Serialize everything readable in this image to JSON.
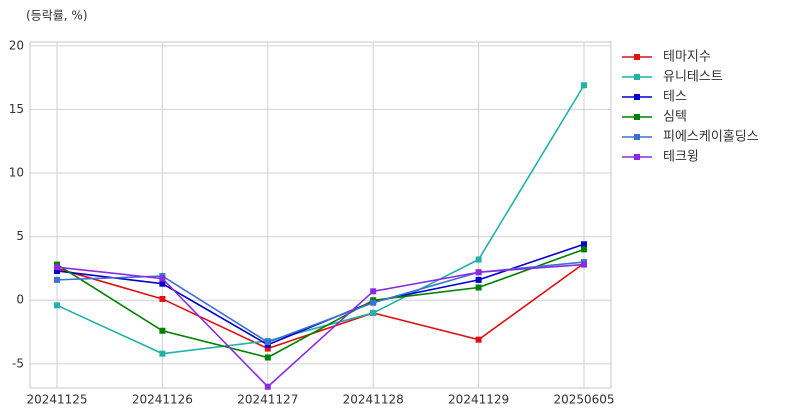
{
  "chart_data": {
    "type": "line",
    "y_label": "(등락률, %)",
    "categories": [
      "20241125",
      "20241126",
      "20241127",
      "20241128",
      "20241129",
      "20250605"
    ],
    "series": [
      {
        "name": "테마지수",
        "color": "#dd1111",
        "values": [
          2.5,
          0.1,
          -3.8,
          -1.0,
          -3.1,
          2.9
        ]
      },
      {
        "name": "유니테스트",
        "color": "#20b2aa",
        "values": [
          -0.4,
          -4.2,
          -3.2,
          -1.0,
          3.2,
          16.9
        ]
      },
      {
        "name": "테스",
        "color": "#0000cc",
        "values": [
          2.3,
          1.3,
          -3.5,
          -0.1,
          1.6,
          4.4
        ]
      },
      {
        "name": "심텍",
        "color": "#008000",
        "values": [
          2.8,
          -2.4,
          -4.5,
          0.0,
          1.0,
          4.0
        ]
      },
      {
        "name": "피에스케이홀딩스",
        "color": "#3f6fd1",
        "values": [
          1.6,
          1.9,
          -3.3,
          -0.2,
          2.2,
          3.0
        ]
      },
      {
        "name": "테크윙",
        "color": "#8a2be2",
        "values": [
          2.6,
          1.7,
          -6.8,
          0.7,
          2.2,
          2.8
        ]
      }
    ],
    "ylim": [
      -6.9,
      20.3
    ],
    "yticks": [
      -5,
      0,
      5,
      10,
      15,
      20
    ],
    "grid": true,
    "legend": "right"
  }
}
